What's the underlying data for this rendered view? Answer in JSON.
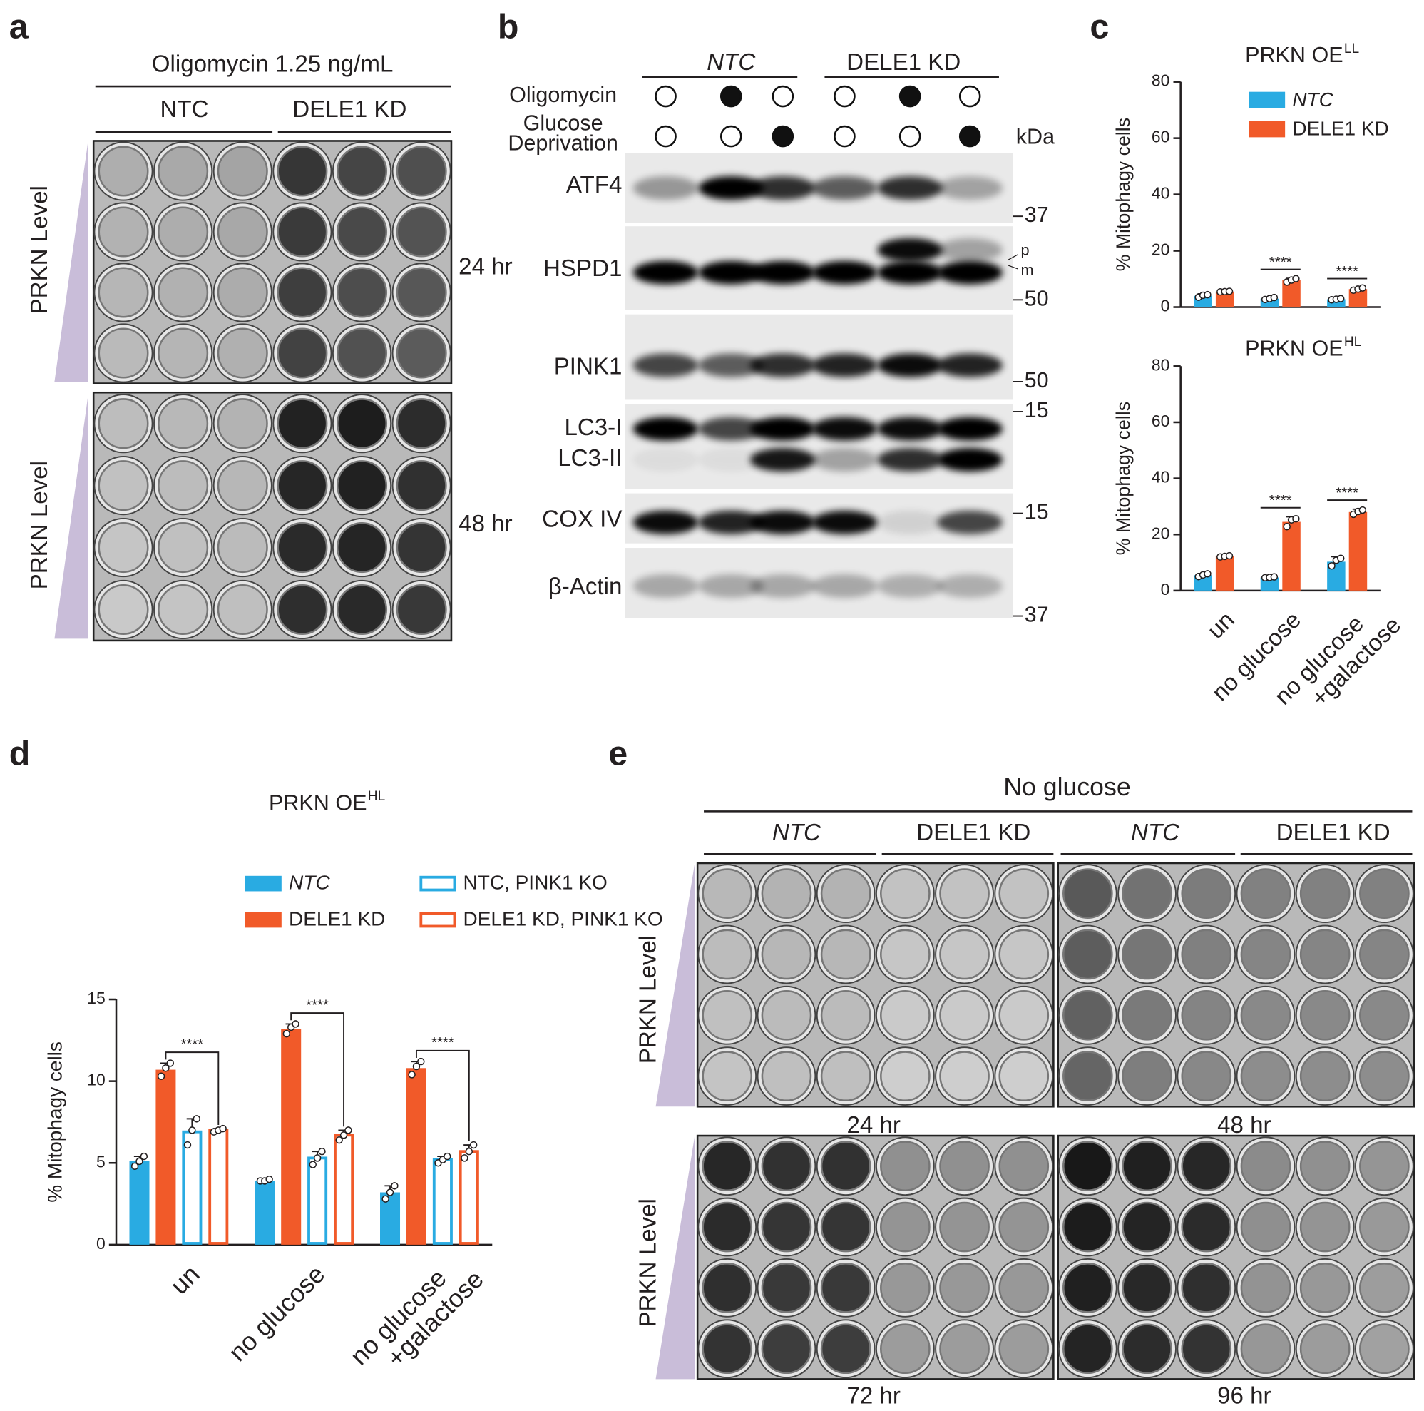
{
  "panel_labels": [
    "a",
    "b",
    "c",
    "d",
    "e"
  ],
  "panel_a": {
    "title": "Oligomycin 1.25 ng/mL",
    "groups": [
      "NTC",
      "DELE1 KD"
    ],
    "row_labels": [
      "PRKN Level",
      "PRKN Level"
    ],
    "times": [
      "24 hr",
      "48 hr"
    ]
  },
  "panel_b": {
    "groups": [
      "NTC",
      "DELE1 KD"
    ],
    "conditions": [
      {
        "label": [
          "Oligomycin"
        ],
        "treated": [
          false,
          true,
          false,
          false,
          true,
          false
        ]
      },
      {
        "label": [
          "Glucose",
          "Deprivation"
        ],
        "treated": [
          false,
          false,
          true,
          false,
          false,
          true
        ]
      }
    ],
    "unit": "kDa",
    "blots": [
      "ATF4",
      "HSPD1",
      "PINK1",
      "LC3-I",
      "LC3-II",
      "COX IV",
      "β-Actin"
    ],
    "markers": [
      37,
      50,
      50,
      15,
      15,
      37
    ],
    "bands": [
      "p",
      "m"
    ]
  },
  "chart_data": [
    {
      "type": "bar",
      "title": "PRKN OE",
      "title_superscript": "LL",
      "ylabel": "% Mitophagy cells",
      "ylim": [
        0,
        80
      ],
      "yticks": [
        0,
        20,
        40,
        60,
        80
      ],
      "legend": "top-right",
      "series": [
        {
          "name": "NTC",
          "color": "#29abe2",
          "style": "solid",
          "values": [
            4.0,
            3.0,
            2.8
          ],
          "errors": [
            0.7,
            0.5,
            0.3
          ],
          "points": [
            [
              3.5,
              4.2,
              4.4
            ],
            [
              2.7,
              3.0,
              3.4
            ],
            [
              2.6,
              2.8,
              3.0
            ]
          ]
        },
        {
          "name": "DELE1 KD",
          "color": "#f15a29",
          "style": "solid",
          "values": [
            5.5,
            9.5,
            6.4
          ],
          "errors": [
            0.2,
            0.7,
            0.5
          ],
          "points": [
            [
              5.4,
              5.5,
              5.6
            ],
            [
              8.9,
              9.6,
              10.1
            ],
            [
              6.0,
              6.4,
              6.8
            ]
          ]
        }
      ],
      "significance": [
        null,
        "****",
        "****"
      ]
    },
    {
      "type": "bar",
      "title": "PRKN OE",
      "title_superscript": "HL",
      "ylabel": "% Mitophagy cells",
      "ylim": [
        0,
        80
      ],
      "yticks": [
        0,
        20,
        40,
        60,
        80
      ],
      "categories": [
        [
          "un"
        ],
        [
          "no glucose"
        ],
        [
          "no glucose",
          "+galactose"
        ]
      ],
      "series": [
        {
          "name": "NTC",
          "color": "#29abe2",
          "style": "solid",
          "values": [
            5.5,
            4.7,
            10.3
          ],
          "errors": [
            0.6,
            0.2,
            1.8
          ],
          "points": [
            [
              5.0,
              5.6,
              6.0
            ],
            [
              4.6,
              4.7,
              4.9
            ],
            [
              8.8,
              10.8,
              11.5
            ]
          ]
        },
        {
          "name": "DELE1 KD",
          "color": "#f15a29",
          "style": "solid",
          "values": [
            12.2,
            24.5,
            28.0
          ],
          "errors": [
            0.3,
            1.8,
            1.0
          ],
          "points": [
            [
              12.0,
              12.2,
              12.4
            ],
            [
              22.8,
              25.2,
              25.6
            ],
            [
              27.2,
              28.2,
              28.7
            ]
          ]
        }
      ],
      "significance": [
        null,
        "****",
        "****"
      ]
    },
    {
      "type": "bar",
      "title": "PRKN OE",
      "title_superscript": "HL",
      "ylabel": "% Mitophagy cells",
      "ylim": [
        0,
        15
      ],
      "yticks": [
        0,
        5,
        10,
        15
      ],
      "legend": "top",
      "categories": [
        [
          "un"
        ],
        [
          "no glucose"
        ],
        [
          "no glucose",
          "+galactose"
        ]
      ],
      "series": [
        {
          "name": "NTC",
          "color": "#29abe2",
          "style": "solid",
          "values": [
            5.1,
            3.9,
            3.2
          ],
          "errors": [
            0.3,
            0.05,
            0.4
          ],
          "points": [
            [
              4.8,
              5.1,
              5.4
            ],
            [
              3.9,
              3.9,
              4.0
            ],
            [
              2.8,
              3.2,
              3.6
            ]
          ]
        },
        {
          "name": "DELE1 KD",
          "color": "#f15a29",
          "style": "solid",
          "values": [
            10.7,
            13.2,
            10.8
          ],
          "errors": [
            0.4,
            0.3,
            0.4
          ],
          "points": [
            [
              10.3,
              10.8,
              11.1
            ],
            [
              12.9,
              13.3,
              13.5
            ],
            [
              10.4,
              10.9,
              11.2
            ]
          ]
        },
        {
          "name": "NTC, PINK1 KO",
          "color": "#29abe2",
          "style": "outline",
          "values": [
            6.9,
            5.3,
            5.2
          ],
          "errors": [
            0.8,
            0.4,
            0.2
          ],
          "points": [
            [
              6.1,
              7.0,
              7.7
            ],
            [
              4.9,
              5.3,
              5.7
            ],
            [
              5.0,
              5.2,
              5.4
            ]
          ]
        },
        {
          "name": "DELE1 KD, PINK1 KO",
          "color": "#f15a29",
          "style": "outline",
          "values": [
            7.0,
            6.7,
            5.7
          ],
          "errors": [
            0.1,
            0.3,
            0.4
          ],
          "points": [
            [
              6.9,
              7.0,
              7.1
            ],
            [
              6.4,
              6.7,
              7.0
            ],
            [
              5.3,
              5.7,
              6.1
            ]
          ]
        }
      ],
      "significance": [
        "****",
        "****",
        "****"
      ]
    }
  ],
  "panel_e": {
    "title": "No glucose",
    "groups": [
      "NTC",
      "DELE1 KD",
      "NTC",
      "DELE1 KD"
    ],
    "row_labels": [
      "PRKN Level",
      "PRKN Level"
    ],
    "times": [
      "24 hr",
      "48 hr",
      "72 hr",
      "96 hr"
    ]
  }
}
